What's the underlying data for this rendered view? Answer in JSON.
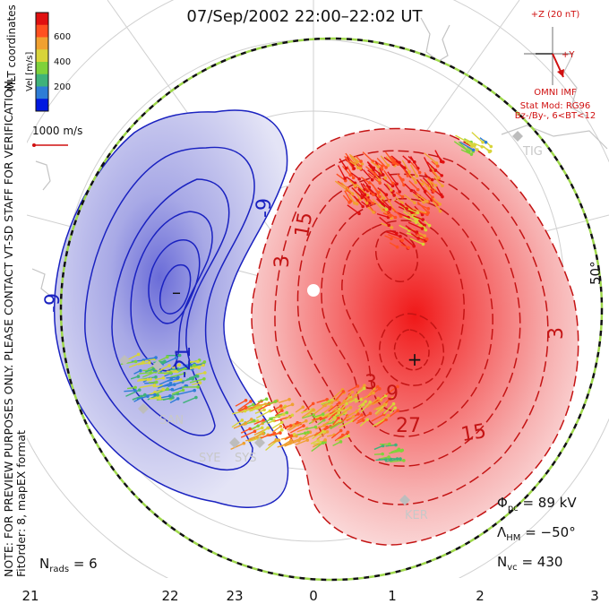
{
  "title": "07/Sep/2002 22:00–22:02 UT",
  "coord_label": "MLT coordinates",
  "note_line1": "NOTE: FOR PREVIEW PURPOSES ONLY. PLEASE CONTACT VT-SD STAFF FOR VERIFICATION.",
  "note_line2": "FitOrder: 8, mapEX format",
  "velocity_scale": {
    "label": "Vel [m/s]",
    "ticks": [
      "600",
      "400",
      "200"
    ],
    "colors": [
      "#0018e0",
      "#2e7dd6",
      "#3fb27a",
      "#7fd23a",
      "#d8d43a",
      "#f0a030",
      "#ff5020",
      "#e01010"
    ],
    "reference_vector_label": "1000 m/s"
  },
  "imf": {
    "z_label": "+Z (20 nT)",
    "y_label": "+Y",
    "source": "OMNI IMF",
    "stat_model": "Stat Mod: RG96",
    "condition": "Bz-/By-, 6<BT<12"
  },
  "stats": {
    "phi_symbol": "Φ",
    "phi_sub": "pc",
    "phi_value": "= 89 kV",
    "lambda_symbol": "Λ",
    "lambda_sub": "HM",
    "lambda_value": "= −50°",
    "nvc_symbol": "N",
    "nvc_sub": "vc",
    "nvc_value": "= 430",
    "nrads_symbol": "N",
    "nrads_sub": "rads",
    "nrads_value": "= 6"
  },
  "latitude_label": "50°",
  "sites": [
    "TIG",
    "SAN",
    "SYE",
    "SYS",
    "KER"
  ],
  "chart_data": {
    "type": "polar-convection-map",
    "x_ticks_mlt": [
      "21",
      "22",
      "23",
      "0",
      "1",
      "2",
      "3"
    ],
    "contour_labels_negative": [
      "-9",
      "-9",
      "-21"
    ],
    "contour_labels_positive": [
      "3",
      "15",
      "3",
      "15",
      "27",
      "9",
      "3"
    ],
    "potential_min_marker": "–",
    "potential_max_marker": "+",
    "boundary_latitude_deg": -50
  }
}
